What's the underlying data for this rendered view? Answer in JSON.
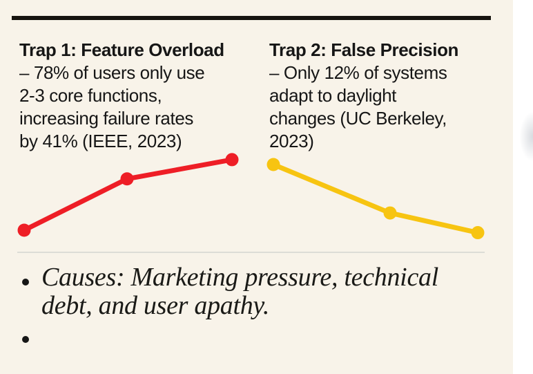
{
  "slide": {
    "columns": [
      {
        "title": "Trap 1: Feature Overload",
        "body_lines": [
          "– 78% of users only use",
          "2-3 core functions,",
          "increasing failure rates",
          "by 41% (IEEE, 2023)"
        ]
      },
      {
        "title": "Trap 2: False Precision",
        "body_lines": [
          "– Only 12% of systems",
          "adapt to daylight",
          "changes (UC Berkeley,",
          "2023)"
        ]
      }
    ],
    "bullets": [
      {
        "lines": [
          "Causes: Marketing pressure, technical",
          "debt, and user apathy."
        ]
      },
      {
        "lines": []
      }
    ]
  },
  "chart_data": [
    {
      "type": "line",
      "name": "trap1-failure-rate-trend",
      "series_label": "Trap 1 trend (rising)",
      "color": "#ee1e26",
      "x": [
        0,
        1,
        2
      ],
      "values": [
        30,
        62,
        74
      ],
      "title": "",
      "xlabel": "",
      "ylabel": "",
      "axes_shown": false,
      "grid": false,
      "legend": false
    },
    {
      "type": "line",
      "name": "trap2-adaptation-trend",
      "series_label": "Trap 2 trend (falling)",
      "color": "#f7c411",
      "x": [
        0,
        1,
        2
      ],
      "values": [
        72,
        40,
        27
      ],
      "title": "",
      "xlabel": "",
      "ylabel": "",
      "axes_shown": false,
      "grid": false,
      "legend": false
    }
  ],
  "colors": {
    "background": "#f8f3e9",
    "text": "#161616",
    "top_rule": "#17140f",
    "divider": "#dcdcd6",
    "red_series": "#ee1e26",
    "yellow_series": "#f7c411",
    "page_edge": "#ffffff"
  }
}
